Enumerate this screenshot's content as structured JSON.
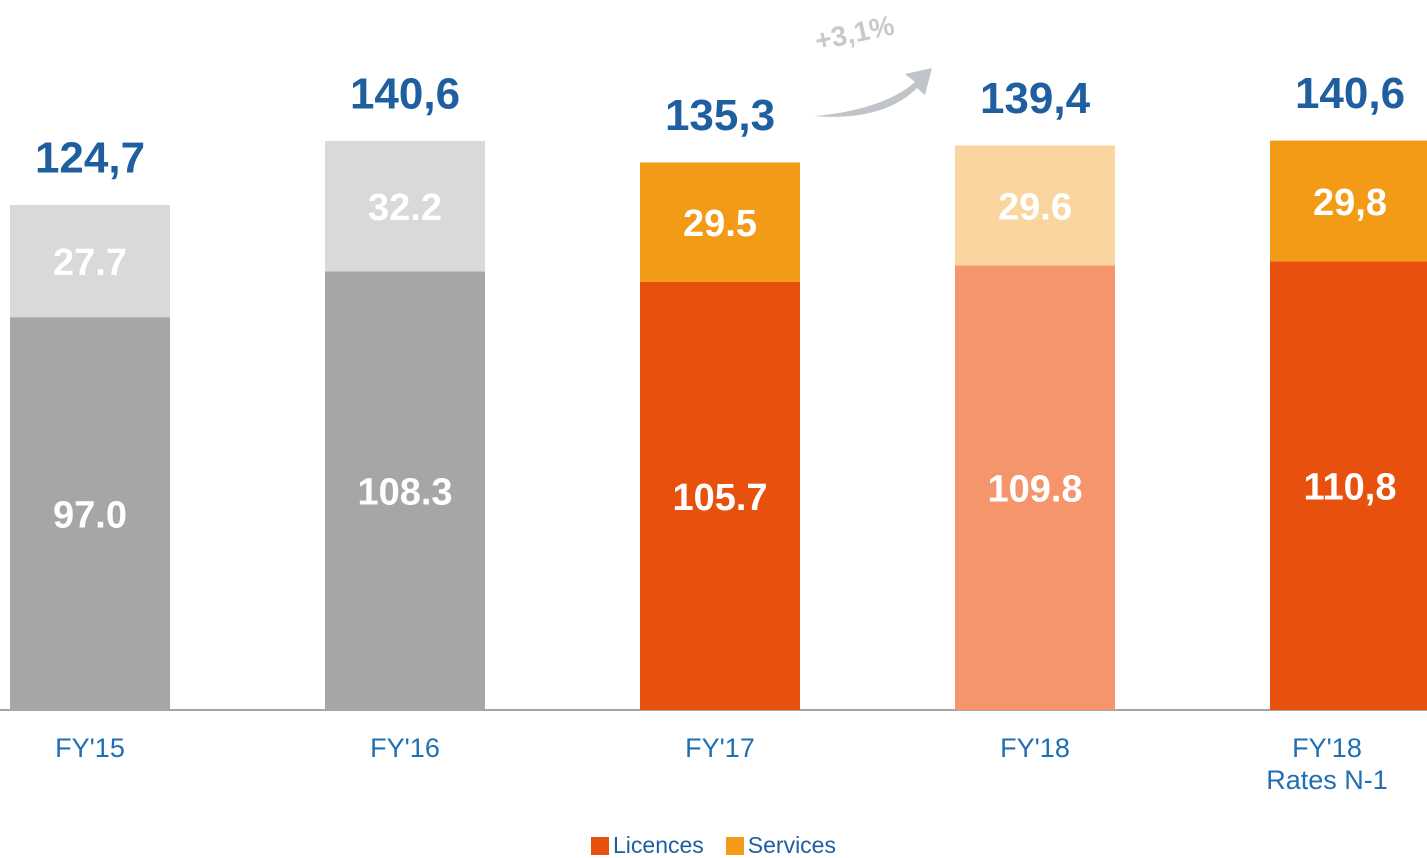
{
  "chart_data": {
    "type": "stacked_bar",
    "categories": [
      "FY'15",
      "FY'16",
      "FY'17",
      "FY'18",
      "FY'18\nRates N-1"
    ],
    "series": [
      {
        "name": "Licences",
        "color": "#e8500e",
        "point_colors": [
          "#a6a6a6",
          "#a6a6a6",
          "#e8500e",
          "#f4956b",
          "#e8500e"
        ],
        "values": [
          97.0,
          108.3,
          105.7,
          109.8,
          110.8
        ],
        "value_labels": [
          "97.0",
          "108.3",
          "105.7",
          "109.8",
          "110,8"
        ]
      },
      {
        "name": "Services",
        "color": "#f39a17",
        "point_colors": [
          "#d9d9d9",
          "#d9d9d9",
          "#f39a17",
          "#fad5a0",
          "#f39a17"
        ],
        "values": [
          27.7,
          32.2,
          29.5,
          29.6,
          29.8
        ],
        "value_labels": [
          "27.7",
          "32.2",
          "29.5",
          "29.6",
          "29,8"
        ]
      }
    ],
    "totals": [
      124.7,
      140.6,
      135.3,
      139.4,
      140.6
    ],
    "total_labels": [
      "124,7",
      "140,6",
      "135,3",
      "139,4",
      "140,6"
    ],
    "annotation": "+3,1%",
    "legend": "bottom"
  }
}
